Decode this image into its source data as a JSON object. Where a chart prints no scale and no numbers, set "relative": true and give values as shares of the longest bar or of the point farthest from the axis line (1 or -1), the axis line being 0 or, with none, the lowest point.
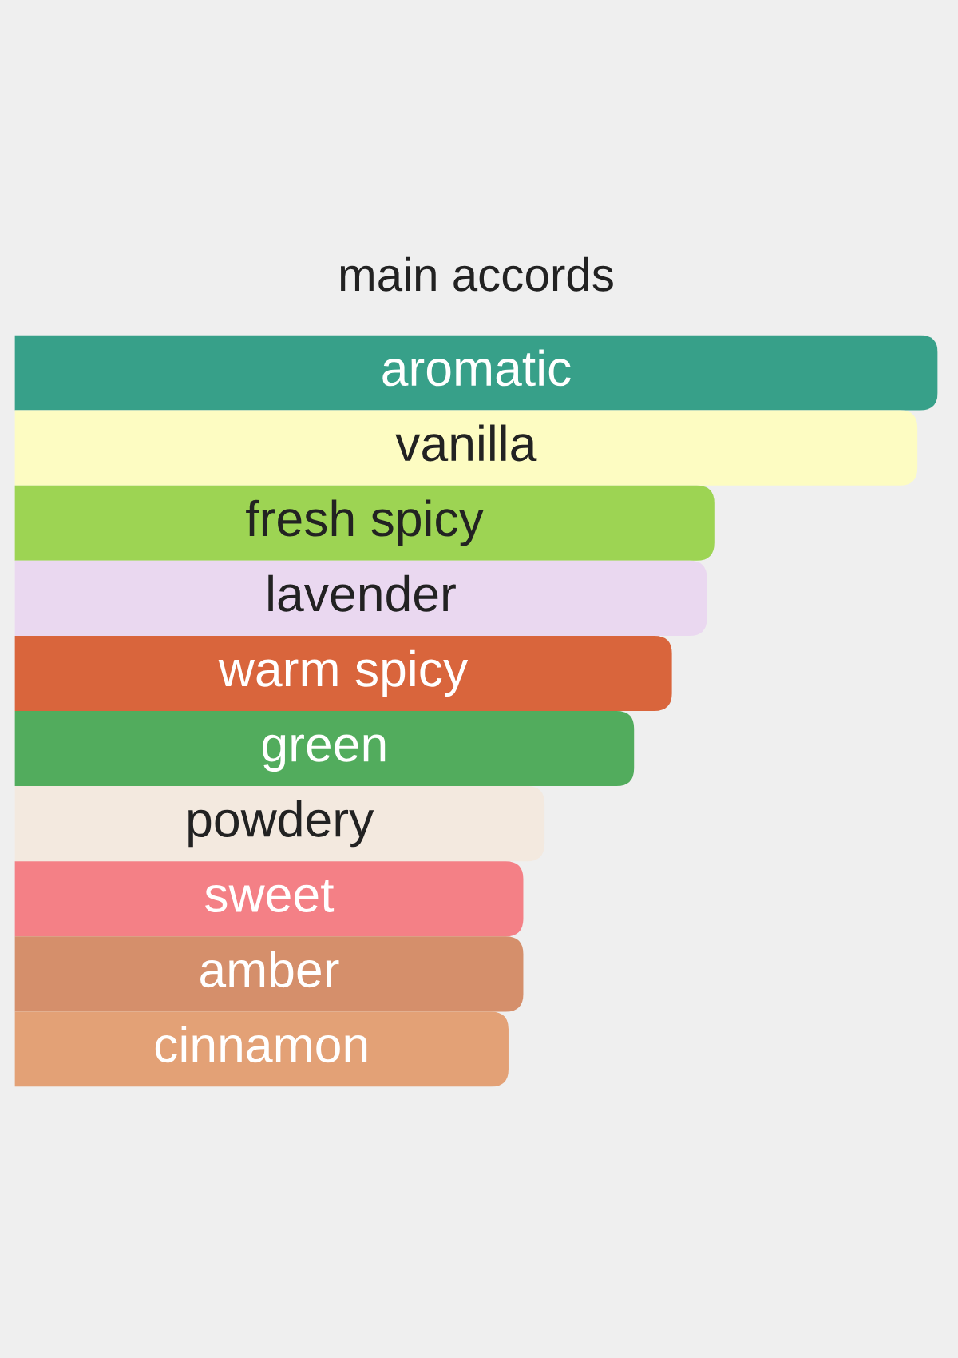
{
  "chart_data": {
    "type": "bar",
    "orientation": "horizontal",
    "relative": true,
    "title": "main accords",
    "categories": [
      "aromatic",
      "vanilla",
      "fresh spicy",
      "lavender",
      "warm spicy",
      "green",
      "powdery",
      "sweet",
      "amber",
      "cinnamon"
    ],
    "values": [
      1,
      0.978,
      0.758,
      0.75,
      0.712,
      0.671,
      0.574,
      0.551,
      0.551,
      0.535
    ],
    "colors": [
      "#37a089",
      "#fdfcc2",
      "#9dd453",
      "#ead8f0",
      "#d9653c",
      "#52ac5d",
      "#f3e9df",
      "#f48086",
      "#d58f6b",
      "#e3a176"
    ],
    "tick_labels": false
  }
}
